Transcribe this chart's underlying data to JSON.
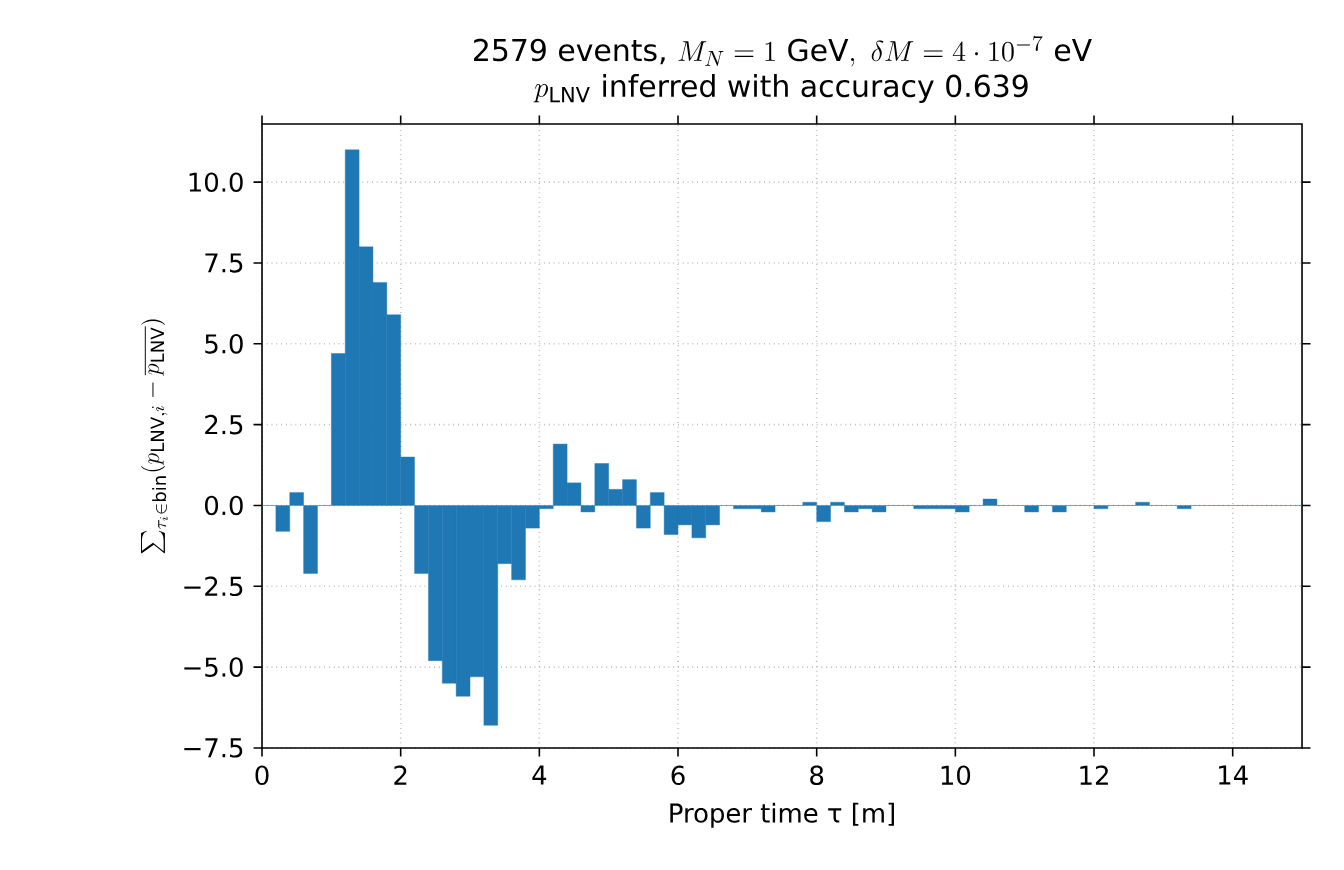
{
  "chart_data": {
    "type": "histogram",
    "title": "\\text{2579 events, } M_N = 1\\ \\text{GeV},\\ \\delta M = 4\\cdot 10^{-7}\\ \\text{eV}",
    "subtitle": "p_{\\mathrm{LNV}}\\text{ inferred with accuracy 0.639}",
    "xlabel": "Proper time τ [m]",
    "ylabel": "\\sum_{\\tau_i \\in \\mathrm{bin}} (p_{\\mathrm{LNV},i} - \\overline{p_{\\mathrm{LNV}}})",
    "bins": [
      0,
      0.2,
      0.4,
      0.6,
      0.8,
      1.0,
      1.2,
      1.4,
      1.6,
      1.8,
      2.0,
      2.2,
      2.4,
      2.6,
      2.8,
      3.0,
      3.2,
      3.4,
      3.6,
      3.8,
      4.0,
      4.2,
      4.4,
      4.6,
      4.8,
      5.0,
      5.2,
      5.4,
      5.6,
      5.8,
      6.0,
      6.2,
      6.4,
      6.6,
      6.8,
      7.0,
      7.2,
      7.4,
      7.6,
      7.8,
      8.0,
      8.2,
      8.4,
      8.6,
      8.8,
      9.0,
      9.2,
      9.4,
      9.6,
      9.8,
      10.0,
      10.2,
      10.4,
      10.6,
      10.8,
      11.0,
      11.2,
      11.4,
      11.6,
      11.8,
      12.0,
      12.2,
      12.4,
      12.6,
      12.8,
      13.0,
      13.2,
      13.4,
      13.6,
      13.8,
      14.0,
      14.2,
      14.4,
      14.6,
      14.8,
      15.0
    ],
    "values": [
      0,
      -0.8,
      0.4,
      -2.1,
      0,
      4.7,
      11.0,
      8.0,
      6.9,
      5.9,
      1.5,
      -2.1,
      -4.8,
      -5.5,
      -5.9,
      -5.3,
      -6.8,
      -1.8,
      -2.3,
      -0.7,
      -0.1,
      1.9,
      0.7,
      -0.2,
      1.3,
      0.5,
      0.8,
      -0.7,
      0.4,
      -0.9,
      -0.6,
      -1.0,
      -0.6,
      0,
      -0.1,
      -0.1,
      -0.2,
      0,
      0,
      0.1,
      -0.5,
      0.1,
      -0.2,
      -0.1,
      -0.2,
      0,
      0,
      -0.1,
      -0.1,
      -0.1,
      -0.2,
      0,
      0.2,
      0,
      0,
      -0.2,
      0,
      -0.2,
      0,
      0,
      -0.1,
      0,
      0,
      0.1,
      0,
      0,
      -0.1,
      0,
      0,
      0,
      0,
      0,
      0,
      0,
      0
    ],
    "color": "#1f77b4",
    "xlim": [
      0,
      15
    ],
    "ylim": [
      -7.5,
      11.8
    ],
    "xticks": [
      0,
      2,
      4,
      6,
      8,
      10,
      12,
      14
    ],
    "yticks": [
      {
        "value": -7.5,
        "label": "−7.5"
      },
      {
        "value": -5,
        "label": "−5.0"
      },
      {
        "value": -2.5,
        "label": "−2.5"
      },
      {
        "value": 0,
        "label": "0.0"
      },
      {
        "value": 2.5,
        "label": "2.5"
      },
      {
        "value": 5,
        "label": "5.0"
      },
      {
        "value": 7.5,
        "label": "7.5"
      },
      {
        "value": 10,
        "label": "10.0"
      }
    ],
    "grid": true
  }
}
